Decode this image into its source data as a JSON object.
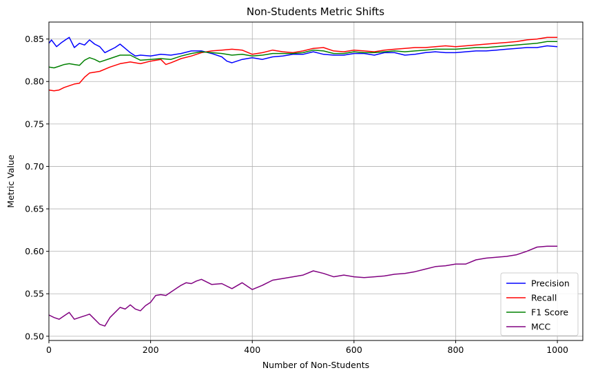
{
  "chart_data": {
    "type": "line",
    "title": "Non-Students Metric Shifts",
    "xlabel": "Number of Non-Students",
    "ylabel": "Metric Value",
    "xlim": [
      0,
      1050
    ],
    "ylim": [
      0.495,
      0.87
    ],
    "xticks": [
      0,
      200,
      400,
      600,
      800,
      1000
    ],
    "yticks": [
      0.5,
      0.55,
      0.6,
      0.65,
      0.7,
      0.75,
      0.8,
      0.85
    ],
    "ytick_labels": [
      "0.50",
      "0.55",
      "0.60",
      "0.65",
      "0.70",
      "0.75",
      "0.80",
      "0.85"
    ],
    "grid": true,
    "legend_position": "lower-right",
    "series": [
      {
        "name": "Precision",
        "color": "#0000ff",
        "x": [
          0,
          5,
          15,
          25,
          35,
          40,
          50,
          60,
          70,
          80,
          90,
          100,
          110,
          120,
          130,
          140,
          150,
          160,
          170,
          180,
          200,
          220,
          240,
          260,
          280,
          300,
          320,
          340,
          350,
          360,
          380,
          400,
          420,
          440,
          460,
          480,
          500,
          520,
          540,
          560,
          580,
          600,
          620,
          640,
          660,
          680,
          700,
          720,
          740,
          760,
          780,
          800,
          820,
          840,
          860,
          880,
          900,
          920,
          940,
          960,
          980,
          1000
        ],
        "values": [
          0.845,
          0.849,
          0.841,
          0.846,
          0.85,
          0.852,
          0.84,
          0.845,
          0.843,
          0.849,
          0.844,
          0.841,
          0.834,
          0.837,
          0.84,
          0.844,
          0.839,
          0.834,
          0.83,
          0.831,
          0.83,
          0.832,
          0.831,
          0.833,
          0.836,
          0.836,
          0.833,
          0.829,
          0.824,
          0.822,
          0.826,
          0.828,
          0.826,
          0.829,
          0.83,
          0.832,
          0.832,
          0.835,
          0.832,
          0.831,
          0.831,
          0.833,
          0.833,
          0.831,
          0.834,
          0.834,
          0.831,
          0.832,
          0.834,
          0.835,
          0.834,
          0.834,
          0.835,
          0.836,
          0.836,
          0.837,
          0.838,
          0.839,
          0.84,
          0.84,
          0.842,
          0.841
        ]
      },
      {
        "name": "Recall",
        "color": "#ff0000",
        "x": [
          0,
          10,
          20,
          30,
          40,
          50,
          60,
          70,
          80,
          90,
          100,
          120,
          140,
          160,
          180,
          200,
          220,
          230,
          240,
          260,
          280,
          300,
          320,
          340,
          360,
          380,
          400,
          420,
          440,
          460,
          480,
          500,
          520,
          540,
          560,
          580,
          600,
          620,
          640,
          660,
          680,
          700,
          720,
          740,
          760,
          780,
          800,
          820,
          840,
          860,
          880,
          900,
          920,
          940,
          960,
          980,
          1000
        ],
        "values": [
          0.79,
          0.789,
          0.79,
          0.793,
          0.795,
          0.797,
          0.798,
          0.805,
          0.81,
          0.811,
          0.812,
          0.817,
          0.821,
          0.823,
          0.821,
          0.824,
          0.826,
          0.82,
          0.822,
          0.827,
          0.83,
          0.834,
          0.836,
          0.837,
          0.838,
          0.837,
          0.832,
          0.834,
          0.837,
          0.835,
          0.834,
          0.836,
          0.839,
          0.84,
          0.836,
          0.835,
          0.837,
          0.836,
          0.835,
          0.837,
          0.838,
          0.839,
          0.84,
          0.84,
          0.841,
          0.842,
          0.841,
          0.842,
          0.843,
          0.844,
          0.845,
          0.846,
          0.847,
          0.849,
          0.85,
          0.852,
          0.852
        ]
      },
      {
        "name": "F1 Score",
        "color": "#008000",
        "x": [
          0,
          10,
          20,
          30,
          40,
          50,
          60,
          70,
          80,
          90,
          100,
          120,
          140,
          160,
          180,
          200,
          220,
          240,
          260,
          280,
          300,
          320,
          340,
          360,
          380,
          400,
          420,
          440,
          460,
          480,
          500,
          520,
          540,
          560,
          580,
          600,
          620,
          640,
          660,
          680,
          700,
          720,
          740,
          760,
          780,
          800,
          820,
          840,
          860,
          880,
          900,
          920,
          940,
          960,
          980,
          1000
        ],
        "values": [
          0.817,
          0.816,
          0.818,
          0.82,
          0.821,
          0.82,
          0.819,
          0.825,
          0.828,
          0.826,
          0.823,
          0.827,
          0.831,
          0.831,
          0.825,
          0.826,
          0.827,
          0.826,
          0.83,
          0.833,
          0.835,
          0.834,
          0.833,
          0.831,
          0.832,
          0.83,
          0.831,
          0.833,
          0.833,
          0.833,
          0.834,
          0.837,
          0.836,
          0.833,
          0.833,
          0.835,
          0.834,
          0.834,
          0.835,
          0.836,
          0.835,
          0.836,
          0.837,
          0.838,
          0.838,
          0.838,
          0.839,
          0.84,
          0.84,
          0.841,
          0.842,
          0.843,
          0.844,
          0.845,
          0.847,
          0.847
        ]
      },
      {
        "name": "MCC",
        "color": "#800080",
        "x": [
          0,
          10,
          20,
          30,
          40,
          50,
          60,
          70,
          80,
          90,
          100,
          110,
          120,
          130,
          140,
          150,
          160,
          170,
          180,
          190,
          200,
          210,
          220,
          230,
          240,
          250,
          260,
          270,
          280,
          290,
          300,
          320,
          340,
          360,
          380,
          400,
          420,
          440,
          460,
          480,
          500,
          520,
          540,
          560,
          580,
          600,
          620,
          640,
          660,
          680,
          700,
          720,
          740,
          760,
          780,
          800,
          820,
          840,
          860,
          880,
          900,
          920,
          940,
          960,
          980,
          1000
        ],
        "values": [
          0.525,
          0.522,
          0.52,
          0.524,
          0.528,
          0.52,
          0.522,
          0.524,
          0.526,
          0.52,
          0.514,
          0.512,
          0.522,
          0.528,
          0.534,
          0.532,
          0.537,
          0.532,
          0.53,
          0.536,
          0.54,
          0.548,
          0.549,
          0.548,
          0.552,
          0.556,
          0.56,
          0.563,
          0.562,
          0.565,
          0.567,
          0.561,
          0.562,
          0.556,
          0.563,
          0.555,
          0.56,
          0.566,
          0.568,
          0.57,
          0.572,
          0.577,
          0.574,
          0.57,
          0.572,
          0.57,
          0.569,
          0.57,
          0.571,
          0.573,
          0.574,
          0.576,
          0.579,
          0.582,
          0.583,
          0.585,
          0.585,
          0.59,
          0.592,
          0.593,
          0.594,
          0.596,
          0.6,
          0.605,
          0.606,
          0.606
        ]
      }
    ]
  }
}
